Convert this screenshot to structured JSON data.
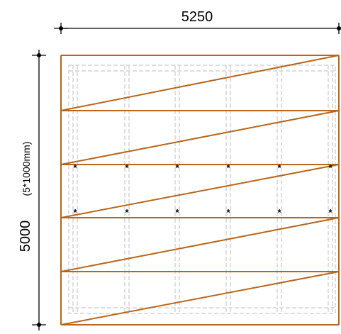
{
  "diagram": {
    "width_label": "5250",
    "height_label": "5000",
    "height_sub_label": "(5*1000mm)",
    "marker_glyph": "*",
    "colors": {
      "dimension": "#000000",
      "frame": "#b8661a",
      "grid": "#d3d3d3",
      "background": "#ffffff"
    }
  }
}
